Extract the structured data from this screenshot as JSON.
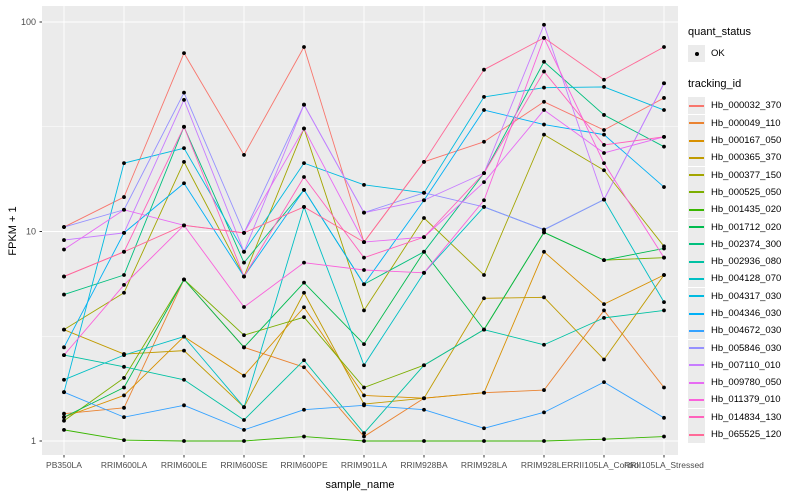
{
  "figure": {
    "background": "#FFFFFF",
    "panel_background": "#EBEBEB",
    "grid_color": "#FFFFFF",
    "tick_text_color": "#4D4D4D",
    "point_color": "#000000"
  },
  "chart_data": {
    "type": "line",
    "title": "",
    "xlabel": "sample_name",
    "ylabel": "FPKM + 1",
    "y_scale": "log10",
    "y_ticks": [
      "1",
      "10",
      "100"
    ],
    "y_minor_ticks": [
      3.162,
      31.62
    ],
    "ylim": [
      0.86,
      120
    ],
    "grid": "on",
    "legend_position": "right",
    "point_shape": "filled-circle",
    "categories": [
      "PB350LA",
      "RRIM600LA",
      "RRIM600LE",
      "RRIM600SE",
      "RRIM600PE",
      "RRIM901LA",
      "RRIM928BA",
      "RRIM928LA",
      "RRIM928LE",
      "RRII105LA_Control",
      "RRII105LA_Stressed"
    ],
    "legend": {
      "quant_status_title": "quant_status",
      "ok_label": "OK",
      "tracking_id_title": "tracking_id"
    },
    "series": [
      {
        "name": "Hb_000032_370",
        "color": "#F8766D",
        "values": [
          10.5,
          14.6,
          71.0,
          23.2,
          76.0,
          8.9,
          21.5,
          26.8,
          41.6,
          30.5,
          43.4
        ]
      },
      {
        "name": "Hb_000049_110",
        "color": "#EA8331",
        "values": [
          1.35,
          1.44,
          5.9,
          2.8,
          2.25,
          1.05,
          1.6,
          1.7,
          1.75,
          4.2,
          1.8
        ]
      },
      {
        "name": "Hb_000167_050",
        "color": "#D89000",
        "values": [
          1.3,
          1.65,
          3.15,
          2.05,
          4.35,
          1.65,
          1.6,
          1.7,
          8.0,
          4.5,
          6.2
        ]
      },
      {
        "name": "Hb_000365_370",
        "color": "#C09B00",
        "values": [
          3.4,
          2.6,
          2.7,
          1.45,
          5.1,
          1.5,
          1.6,
          4.8,
          4.85,
          2.45,
          6.2
        ]
      },
      {
        "name": "Hb_000377_150",
        "color": "#A3A500",
        "values": [
          3.4,
          5.1,
          21.5,
          6.1,
          31.0,
          4.2,
          11.6,
          6.2,
          29.0,
          19.6,
          8.5
        ]
      },
      {
        "name": "Hb_000525_050",
        "color": "#7CAE00",
        "values": [
          1.25,
          2.0,
          5.9,
          3.2,
          3.9,
          1.8,
          2.3,
          3.4,
          9.9,
          7.3,
          7.5
        ]
      },
      {
        "name": "Hb_001435_020",
        "color": "#39B600",
        "values": [
          1.13,
          1.01,
          1.0,
          1.0,
          1.05,
          1.0,
          1.0,
          1.0,
          1.0,
          1.02,
          1.05
        ]
      },
      {
        "name": "Hb_001712_020",
        "color": "#00BB4E",
        "values": [
          1.3,
          1.8,
          5.9,
          2.8,
          5.7,
          2.9,
          8.0,
          3.4,
          9.9,
          7.3,
          8.3
        ]
      },
      {
        "name": "Hb_002374_300",
        "color": "#00BF7D",
        "values": [
          5.0,
          6.2,
          31.6,
          7.1,
          15.8,
          5.6,
          8.0,
          19.0,
          64.6,
          36.0,
          25.4
        ]
      },
      {
        "name": "Hb_002936_080",
        "color": "#00C1A3",
        "values": [
          2.57,
          2.26,
          1.96,
          1.26,
          2.43,
          1.09,
          2.3,
          3.4,
          2.88,
          3.87,
          4.2
        ]
      },
      {
        "name": "Hb_004128_070",
        "color": "#00BFC4",
        "values": [
          1.96,
          2.57,
          3.15,
          1.45,
          13.1,
          2.3,
          6.35,
          13.1,
          10.2,
          14.2,
          4.6
        ]
      },
      {
        "name": "Hb_004317_030",
        "color": "#00BAE0",
        "values": [
          1.71,
          21.2,
          25.0,
          8.0,
          21.2,
          16.7,
          15.3,
          43.9,
          48.6,
          49.0,
          38.0
        ]
      },
      {
        "name": "Hb_004346_030",
        "color": "#00B0F6",
        "values": [
          2.8,
          9.85,
          17.0,
          6.1,
          15.8,
          5.6,
          14.1,
          38.0,
          32.4,
          29.0,
          16.3
        ]
      },
      {
        "name": "Hb_004672_030",
        "color": "#35A2FF",
        "values": [
          1.71,
          1.3,
          1.48,
          1.13,
          1.41,
          1.48,
          1.41,
          1.15,
          1.37,
          1.91,
          1.29
        ]
      },
      {
        "name": "Hb_005846_030",
        "color": "#9590FF",
        "values": [
          10.5,
          12.7,
          46.0,
          9.85,
          40.3,
          12.3,
          15.3,
          13.1,
          10.2,
          14.2,
          51.0
        ]
      },
      {
        "name": "Hb_007110_010",
        "color": "#C77CFF",
        "values": [
          9.1,
          9.85,
          42.5,
          8.0,
          40.3,
          12.3,
          14.1,
          19.0,
          97.0,
          14.2,
          51.0
        ]
      },
      {
        "name": "Hb_009780_050",
        "color": "#E76BF3",
        "values": [
          8.2,
          12.7,
          10.7,
          9.85,
          31.0,
          8.9,
          9.4,
          17.2,
          38.0,
          23.7,
          28.3
        ]
      },
      {
        "name": "Hb_011379_010",
        "color": "#FA62DB",
        "values": [
          2.57,
          5.56,
          10.7,
          4.36,
          7.1,
          6.55,
          6.35,
          14.1,
          84.0,
          21.2,
          7.5
        ]
      },
      {
        "name": "Hb_014834_130",
        "color": "#FF62BC",
        "values": [
          6.1,
          8.0,
          31.6,
          6.1,
          18.2,
          7.5,
          9.4,
          19.0,
          58.0,
          25.9,
          28.3
        ]
      },
      {
        "name": "Hb_065525_120",
        "color": "#FF6A98",
        "values": [
          6.1,
          8.0,
          10.7,
          9.85,
          13.1,
          8.9,
          21.5,
          59.2,
          84.0,
          53.0,
          76.0
        ]
      }
    ]
  }
}
